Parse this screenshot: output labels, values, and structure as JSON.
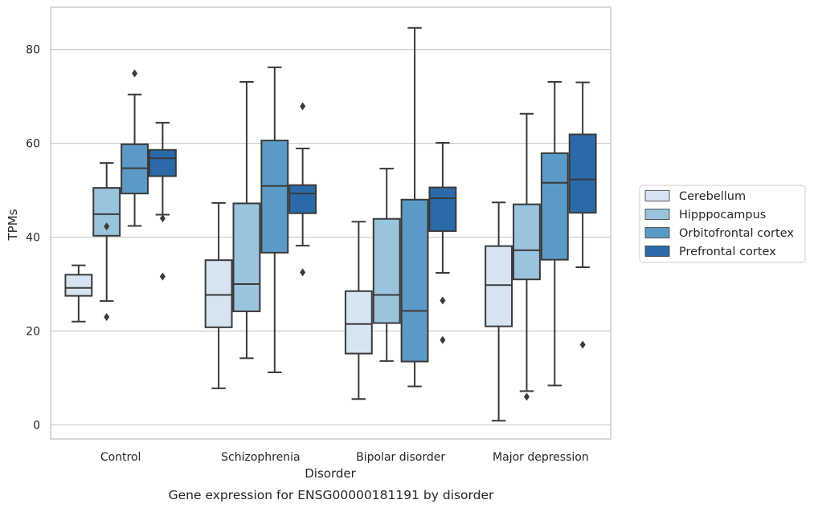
{
  "chart_data": {
    "type": "box",
    "caption": "Gene expression for ENSG00000181191 by disorder",
    "xlabel": "Disorder",
    "ylabel": "TPMs",
    "ylim": [
      -3,
      89
    ],
    "y_ticks": [
      0,
      20,
      40,
      60,
      80
    ],
    "grid": "horizontal",
    "legend_position": "right",
    "categories": [
      "Control",
      "Schizophrenia",
      "Bipolar disorder",
      "Major depression"
    ],
    "series": [
      {
        "name": "Cerebellum",
        "color": "#d6e4f2",
        "boxes": [
          {
            "whisker_low": 22.0,
            "q1": 27.5,
            "median": 29.2,
            "q3": 32.0,
            "whisker_high": 34.0,
            "outliers": []
          },
          {
            "whisker_low": 7.8,
            "q1": 20.8,
            "median": 27.7,
            "q3": 35.1,
            "whisker_high": 47.3,
            "outliers": []
          },
          {
            "whisker_low": 5.5,
            "q1": 15.2,
            "median": 21.5,
            "q3": 28.5,
            "whisker_high": 43.3,
            "outliers": []
          },
          {
            "whisker_low": 0.9,
            "q1": 21.0,
            "median": 29.8,
            "q3": 38.1,
            "whisker_high": 47.4,
            "outliers": []
          }
        ]
      },
      {
        "name": "Hipppocampus",
        "color": "#9ac3dd",
        "boxes": [
          {
            "whisker_low": 26.4,
            "q1": 40.3,
            "median": 44.9,
            "q3": 50.5,
            "whisker_high": 55.8,
            "outliers": [
              42.3,
              23.0
            ]
          },
          {
            "whisker_low": 14.2,
            "q1": 24.2,
            "median": 30.0,
            "q3": 47.2,
            "whisker_high": 73.1,
            "outliers": []
          },
          {
            "whisker_low": 13.6,
            "q1": 21.7,
            "median": 27.7,
            "q3": 43.9,
            "whisker_high": 54.6,
            "outliers": []
          },
          {
            "whisker_low": 7.2,
            "q1": 31.0,
            "median": 37.2,
            "q3": 47.0,
            "whisker_high": 66.3,
            "outliers": [
              6.0
            ]
          }
        ]
      },
      {
        "name": "Orbitofrontal cortex",
        "color": "#5b9ac6",
        "boxes": [
          {
            "whisker_low": 42.4,
            "q1": 49.3,
            "median": 54.7,
            "q3": 59.8,
            "whisker_high": 70.4,
            "outliers": [
              74.9
            ]
          },
          {
            "whisker_low": 11.2,
            "q1": 36.7,
            "median": 50.9,
            "q3": 60.6,
            "whisker_high": 76.2,
            "outliers": []
          },
          {
            "whisker_low": 8.2,
            "q1": 13.5,
            "median": 24.3,
            "q3": 48.0,
            "whisker_high": 84.6,
            "outliers": []
          },
          {
            "whisker_low": 8.4,
            "q1": 35.2,
            "median": 51.6,
            "q3": 57.9,
            "whisker_high": 73.1,
            "outliers": []
          }
        ]
      },
      {
        "name": "Prefrontal cortex",
        "color": "#2b6aa8",
        "boxes": [
          {
            "whisker_low": 44.8,
            "q1": 53.0,
            "median": 56.8,
            "q3": 58.6,
            "whisker_high": 64.4,
            "outliers": [
              44.0,
              31.6
            ]
          },
          {
            "whisker_low": 38.2,
            "q1": 45.1,
            "median": 49.3,
            "q3": 51.1,
            "whisker_high": 58.9,
            "outliers": [
              67.9,
              32.5
            ]
          },
          {
            "whisker_low": 32.4,
            "q1": 41.3,
            "median": 48.3,
            "q3": 50.6,
            "whisker_high": 60.1,
            "outliers": [
              26.5,
              18.1
            ]
          },
          {
            "whisker_low": 33.6,
            "q1": 45.2,
            "median": 52.3,
            "q3": 61.9,
            "whisker_high": 73.0,
            "outliers": [
              17.1
            ]
          }
        ]
      }
    ]
  }
}
